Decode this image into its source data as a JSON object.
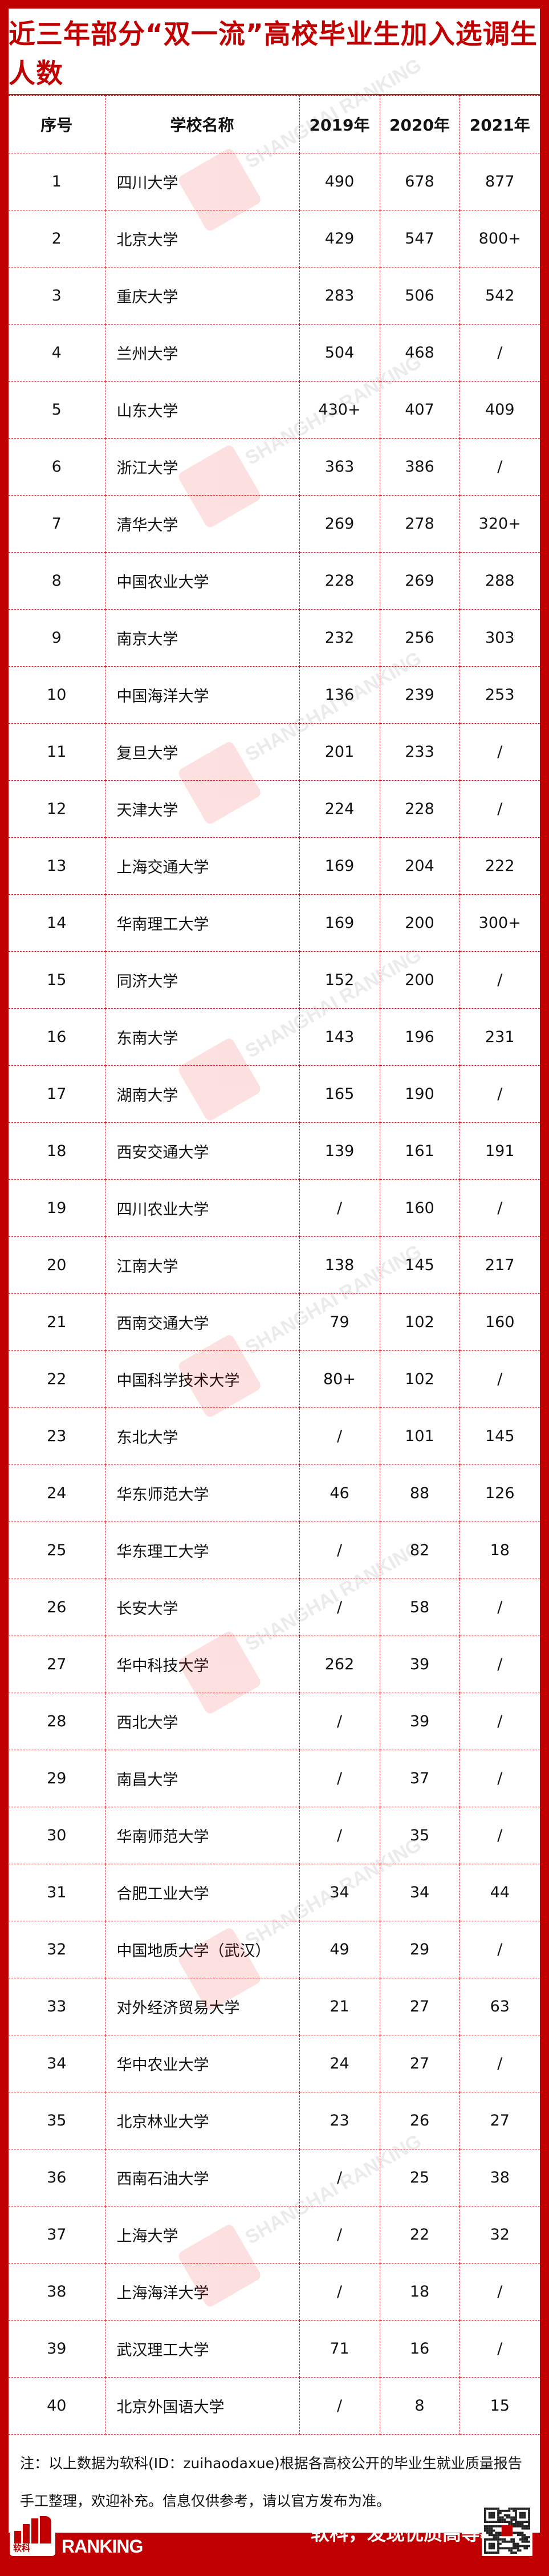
{
  "title": "近三年部分“双一流”高校毕业生加入选调生人数",
  "headers": [
    "序号",
    "学校名称",
    "2019年",
    "2020年",
    "2021年"
  ],
  "rows": [
    [
      "1",
      "四川大学",
      "490",
      "678",
      "877"
    ],
    [
      "2",
      "北京大学",
      "429",
      "547",
      "800+"
    ],
    [
      "3",
      "重庆大学",
      "283",
      "506",
      "542"
    ],
    [
      "4",
      "兰州大学",
      "504",
      "468",
      "/"
    ],
    [
      "5",
      "山东大学",
      "430+",
      "407",
      "409"
    ],
    [
      "6",
      "浙江大学",
      "363",
      "386",
      "/"
    ],
    [
      "7",
      "清华大学",
      "269",
      "278",
      "320+"
    ],
    [
      "8",
      "中国农业大学",
      "228",
      "269",
      "288"
    ],
    [
      "9",
      "南京大学",
      "232",
      "256",
      "303"
    ],
    [
      "10",
      "中国海洋大学",
      "136",
      "239",
      "253"
    ],
    [
      "11",
      "复旦大学",
      "201",
      "233",
      "/"
    ],
    [
      "12",
      "天津大学",
      "224",
      "228",
      "/"
    ],
    [
      "13",
      "上海交通大学",
      "169",
      "204",
      "222"
    ],
    [
      "14",
      "华南理工大学",
      "169",
      "200",
      "300+"
    ],
    [
      "15",
      "同济大学",
      "152",
      "200",
      "/"
    ],
    [
      "16",
      "东南大学",
      "143",
      "196",
      "231"
    ],
    [
      "17",
      "湖南大学",
      "165",
      "190",
      "/"
    ],
    [
      "18",
      "西安交通大学",
      "139",
      "161",
      "191"
    ],
    [
      "19",
      "四川农业大学",
      "/",
      "160",
      "/"
    ],
    [
      "20",
      "江南大学",
      "138",
      "145",
      "217"
    ],
    [
      "21",
      "西南交通大学",
      "79",
      "102",
      "160"
    ],
    [
      "22",
      "中国科学技术大学",
      "80+",
      "102",
      "/"
    ],
    [
      "23",
      "东北大学",
      "/",
      "101",
      "145"
    ],
    [
      "24",
      "华东师范大学",
      "46",
      "88",
      "126"
    ],
    [
      "25",
      "华东理工大学",
      "/",
      "82",
      "18"
    ],
    [
      "26",
      "长安大学",
      "/",
      "58",
      "/"
    ],
    [
      "27",
      "华中科技大学",
      "262",
      "39",
      "/"
    ],
    [
      "28",
      "西北大学",
      "/",
      "39",
      "/"
    ],
    [
      "29",
      "南昌大学",
      "/",
      "37",
      "/"
    ],
    [
      "30",
      "华南师范大学",
      "/",
      "35",
      "/"
    ],
    [
      "31",
      "合肥工业大学",
      "34",
      "34",
      "44"
    ],
    [
      "32",
      "中国地质大学（武汉）",
      "49",
      "29",
      "/"
    ],
    [
      "33",
      "对外经济贸易大学",
      "21",
      "27",
      "63"
    ],
    [
      "34",
      "华中农业大学",
      "24",
      "27",
      "/"
    ],
    [
      "35",
      "北京林业大学",
      "23",
      "26",
      "27"
    ],
    [
      "36",
      "西南石油大学",
      "/",
      "25",
      "38"
    ],
    [
      "37",
      "上海大学",
      "/",
      "22",
      "32"
    ],
    [
      "38",
      "上海海洋大学",
      "/",
      "18",
      "/"
    ],
    [
      "39",
      "武汉理工大学",
      "71",
      "16",
      "/"
    ],
    [
      "40",
      "北京外国语大学",
      "/",
      "8",
      "15"
    ]
  ],
  "note": "注：以上数据为软科(ID：zuihaodaxue)根据各高校公开的毕业生就业质量报告手工整理，欢迎补充。信息仅供参考，请以官方发布为准。",
  "footer": {
    "logo_text": "软科",
    "brand_line1": "SHANGHAI",
    "brand_line2": "RANKING",
    "slogan": "软科，发现优质高等教育"
  },
  "watermark": "SHANGHAI RANKING",
  "colors": {
    "brand_red": "#c00000",
    "grid": "#d0181e"
  }
}
